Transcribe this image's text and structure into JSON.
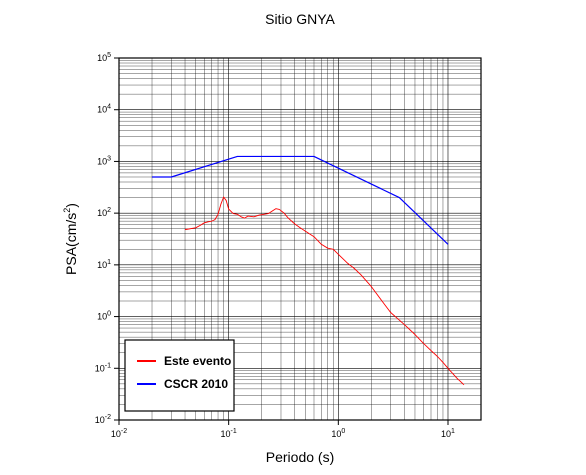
{
  "chart_data": {
    "type": "line",
    "title": "Sitio GNYA",
    "xlabel": "Periodo (s)",
    "ylabel": "PSA(cm/s²)",
    "ylabel_main": "PSA(cm/s",
    "ylabel_sup": "2",
    "ylabel_end": ")",
    "xscale": "log",
    "yscale": "log",
    "xlim": [
      0.01,
      20
    ],
    "ylim": [
      0.01,
      100000
    ],
    "x_ticks": [
      {
        "base": "10",
        "exp": "-2",
        "value": 0.01
      },
      {
        "base": "10",
        "exp": "-1",
        "value": 0.1
      },
      {
        "base": "10",
        "exp": "0",
        "value": 1
      },
      {
        "base": "10",
        "exp": "1",
        "value": 10
      }
    ],
    "y_ticks": [
      {
        "base": "10",
        "exp": "-2",
        "value": 0.01
      },
      {
        "base": "10",
        "exp": "-1",
        "value": 0.1
      },
      {
        "base": "10",
        "exp": "0",
        "value": 1
      },
      {
        "base": "10",
        "exp": "1",
        "value": 10
      },
      {
        "base": "10",
        "exp": "2",
        "value": 100
      },
      {
        "base": "10",
        "exp": "3",
        "value": 1000
      },
      {
        "base": "10",
        "exp": "4",
        "value": 10000
      },
      {
        "base": "10",
        "exp": "5",
        "value": 100000
      }
    ],
    "grid": true,
    "legend_position": "bottom-left",
    "series": [
      {
        "name": "Este evento",
        "color": "#ff0000",
        "points": [
          [
            0.04,
            48
          ],
          [
            0.05,
            52
          ],
          [
            0.055,
            58
          ],
          [
            0.06,
            65
          ],
          [
            0.065,
            68
          ],
          [
            0.07,
            70
          ],
          [
            0.075,
            75
          ],
          [
            0.08,
            95
          ],
          [
            0.085,
            150
          ],
          [
            0.09,
            205
          ],
          [
            0.095,
            175
          ],
          [
            0.1,
            120
          ],
          [
            0.11,
            98
          ],
          [
            0.12,
            95
          ],
          [
            0.13,
            85
          ],
          [
            0.14,
            80
          ],
          [
            0.15,
            88
          ],
          [
            0.17,
            85
          ],
          [
            0.19,
            92
          ],
          [
            0.21,
            95
          ],
          [
            0.23,
            98
          ],
          [
            0.25,
            110
          ],
          [
            0.27,
            122
          ],
          [
            0.29,
            118
          ],
          [
            0.32,
            100
          ],
          [
            0.35,
            80
          ],
          [
            0.4,
            62
          ],
          [
            0.45,
            52
          ],
          [
            0.5,
            45
          ],
          [
            0.6,
            35
          ],
          [
            0.7,
            25
          ],
          [
            0.8,
            21
          ],
          [
            0.9,
            20
          ],
          [
            1.0,
            16
          ],
          [
            1.2,
            11
          ],
          [
            1.4,
            8.5
          ],
          [
            1.6,
            6.5
          ],
          [
            2.0,
            3.8
          ],
          [
            2.5,
            2.0
          ],
          [
            3.0,
            1.2
          ],
          [
            3.5,
            0.9
          ],
          [
            4.0,
            0.7
          ],
          [
            5.0,
            0.45
          ],
          [
            6.0,
            0.3
          ],
          [
            7.0,
            0.22
          ],
          [
            8.0,
            0.17
          ],
          [
            9.0,
            0.13
          ],
          [
            10.0,
            0.1
          ],
          [
            12.0,
            0.065
          ],
          [
            14.0,
            0.048
          ]
        ]
      },
      {
        "name": "CSCR 2010",
        "color": "#0000ff",
        "points": [
          [
            0.02,
            500
          ],
          [
            0.03,
            500
          ],
          [
            0.12,
            1250
          ],
          [
            0.6,
            1250
          ],
          [
            3.6,
            200
          ],
          [
            10.0,
            25
          ]
        ]
      }
    ]
  }
}
